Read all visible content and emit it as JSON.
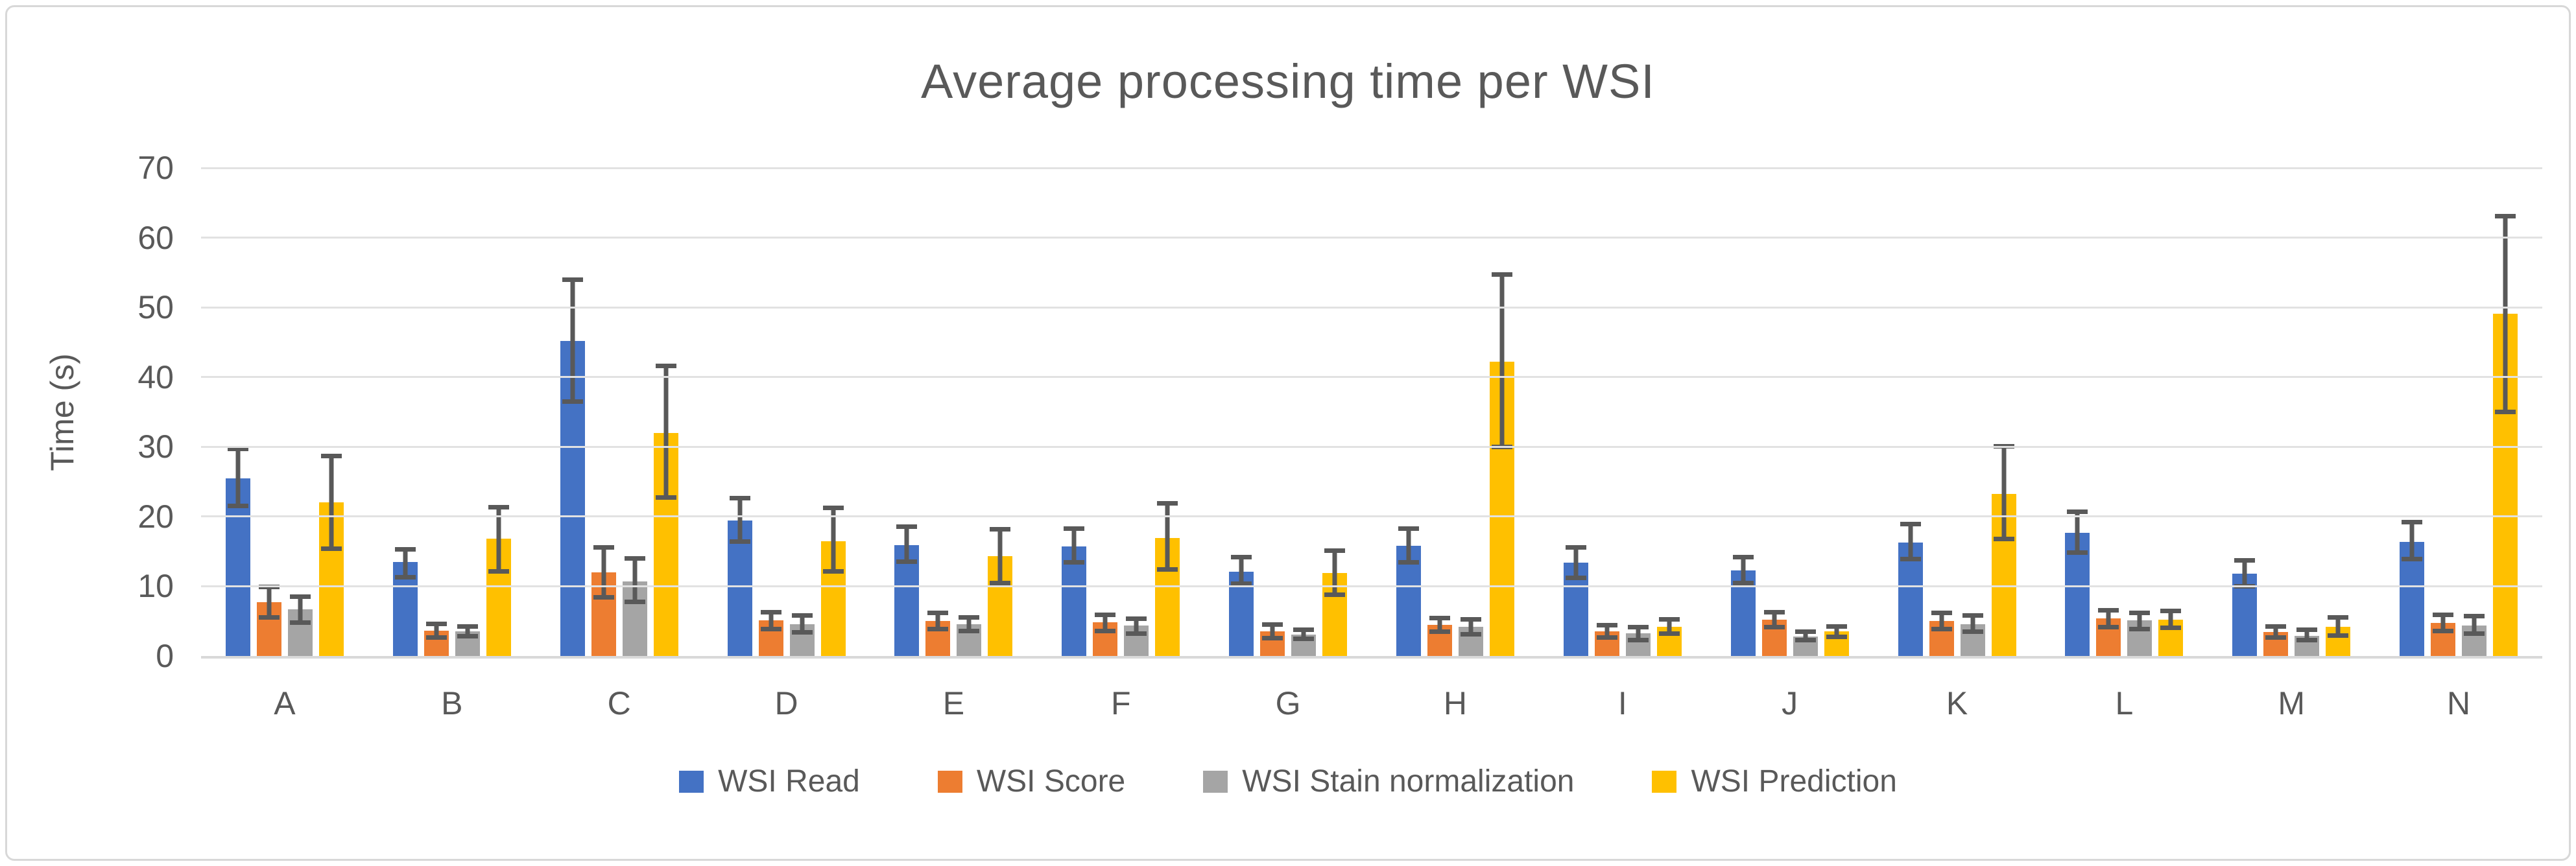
{
  "chart_data": {
    "type": "bar",
    "title": "Average processing time per WSI",
    "ylabel": "Time (s)",
    "ylim": [
      0,
      70
    ],
    "ytick_step": 10,
    "grid": true,
    "legend_position": "bottom",
    "background_color": "#ffffff",
    "frame_border_color": "#d8d8d8",
    "gridline_color": "#e2e2e2",
    "axis_line_color": "#d9d9d9",
    "text_color": "#595959",
    "error_bar_color": "#595959",
    "categories": [
      "A",
      "B",
      "C",
      "D",
      "E",
      "F",
      "G",
      "H",
      "I",
      "J",
      "K",
      "L",
      "M",
      "N"
    ],
    "series": [
      {
        "name": "WSI Read",
        "color": "#4472C4",
        "values": [
          25.5,
          13.5,
          45.2,
          19.4,
          15.9,
          15.7,
          12.1,
          15.8,
          13.4,
          12.3,
          16.3,
          17.7,
          11.8,
          16.4
        ],
        "err_low": [
          21.2,
          11.0,
          36.2,
          16.1,
          13.2,
          13.1,
          10.0,
          13.1,
          10.9,
          10.1,
          13.6,
          14.5,
          9.7,
          13.6
        ],
        "err_high": [
          30.0,
          15.6,
          54.3,
          23.0,
          18.9,
          18.6,
          14.5,
          18.6,
          15.9,
          14.5,
          19.2,
          21.0,
          14.0,
          19.5
        ]
      },
      {
        "name": "WSI Score",
        "color": "#ED7D31",
        "values": [
          7.7,
          3.6,
          12.0,
          5.1,
          5.0,
          4.8,
          3.5,
          4.5,
          3.5,
          5.2,
          5.0,
          5.4,
          3.4,
          4.7
        ],
        "err_low": [
          5.2,
          2.3,
          8.1,
          3.5,
          3.5,
          3.3,
          2.2,
          3.2,
          2.3,
          3.8,
          3.5,
          3.8,
          2.3,
          3.3
        ],
        "err_high": [
          10.2,
          4.9,
          15.9,
          6.6,
          6.5,
          6.2,
          4.8,
          5.8,
          4.7,
          6.6,
          6.5,
          6.9,
          4.6,
          6.2
        ]
      },
      {
        "name": "WSI Stain normalization",
        "color": "#A5A5A5",
        "values": [
          6.7,
          3.5,
          10.7,
          4.6,
          4.6,
          4.4,
          3.1,
          4.2,
          3.3,
          2.8,
          4.6,
          5.1,
          2.9,
          4.4
        ],
        "err_low": [
          4.5,
          2.5,
          7.4,
          3.1,
          3.3,
          2.9,
          2.1,
          2.8,
          2.0,
          2.0,
          3.2,
          3.5,
          2.0,
          2.9
        ],
        "err_high": [
          8.8,
          4.6,
          14.3,
          6.1,
          5.9,
          5.7,
          4.1,
          5.6,
          4.5,
          3.8,
          6.1,
          6.5,
          4.1,
          6.0
        ]
      },
      {
        "name": "WSI Prediction",
        "color": "#FFC000",
        "values": [
          22.0,
          16.8,
          32.0,
          16.5,
          14.3,
          16.9,
          11.9,
          42.2,
          4.2,
          3.5,
          23.2,
          5.2,
          4.2,
          49.1
        ],
        "err_low": [
          15.1,
          11.8,
          22.4,
          11.8,
          10.1,
          12.1,
          8.5,
          29.7,
          2.9,
          2.4,
          16.5,
          3.7,
          2.6,
          34.7
        ],
        "err_high": [
          29.0,
          21.7,
          41.9,
          21.6,
          18.5,
          22.2,
          15.4,
          55.0,
          5.6,
          4.6,
          30.4,
          6.8,
          5.9,
          63.4
        ]
      }
    ]
  }
}
